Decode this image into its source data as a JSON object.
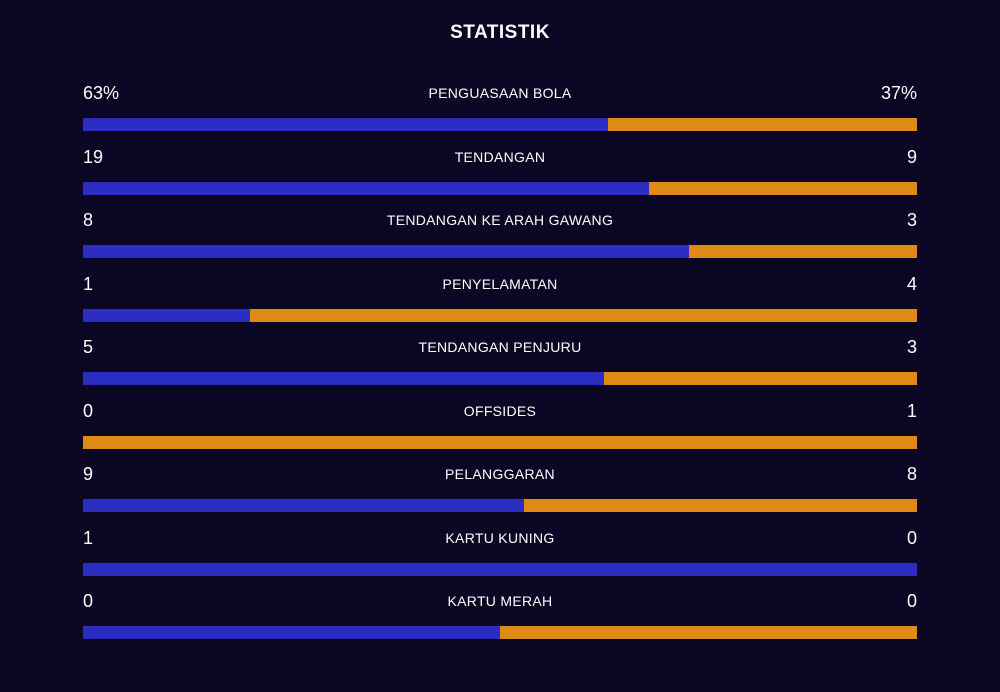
{
  "header": {
    "title": "STATISTIK"
  },
  "colors": {
    "background": "#0a0623",
    "home": "#2a2cc2",
    "away": "#df8a17"
  },
  "stats": [
    {
      "label": "PENGUASAAN BOLA",
      "home": "63%",
      "away": "37%",
      "home_share": 0.63
    },
    {
      "label": "TENDANGAN",
      "home": "19",
      "away": "9",
      "home_share": 0.679
    },
    {
      "label": "TENDANGAN KE ARAH GAWANG",
      "home": "8",
      "away": "3",
      "home_share": 0.727
    },
    {
      "label": "PENYELAMATAN",
      "home": "1",
      "away": "4",
      "home_share": 0.2
    },
    {
      "label": "TENDANGAN PENJURU",
      "home": "5",
      "away": "3",
      "home_share": 0.625
    },
    {
      "label": "OFFSIDES",
      "home": "0",
      "away": "1",
      "home_share": 0.0
    },
    {
      "label": "PELANGGARAN",
      "home": "9",
      "away": "8",
      "home_share": 0.529
    },
    {
      "label": "KARTU KUNING",
      "home": "1",
      "away": "0",
      "home_share": 1.0
    },
    {
      "label": "KARTU MERAH",
      "home": "0",
      "away": "0",
      "home_share": 0.5
    }
  ]
}
